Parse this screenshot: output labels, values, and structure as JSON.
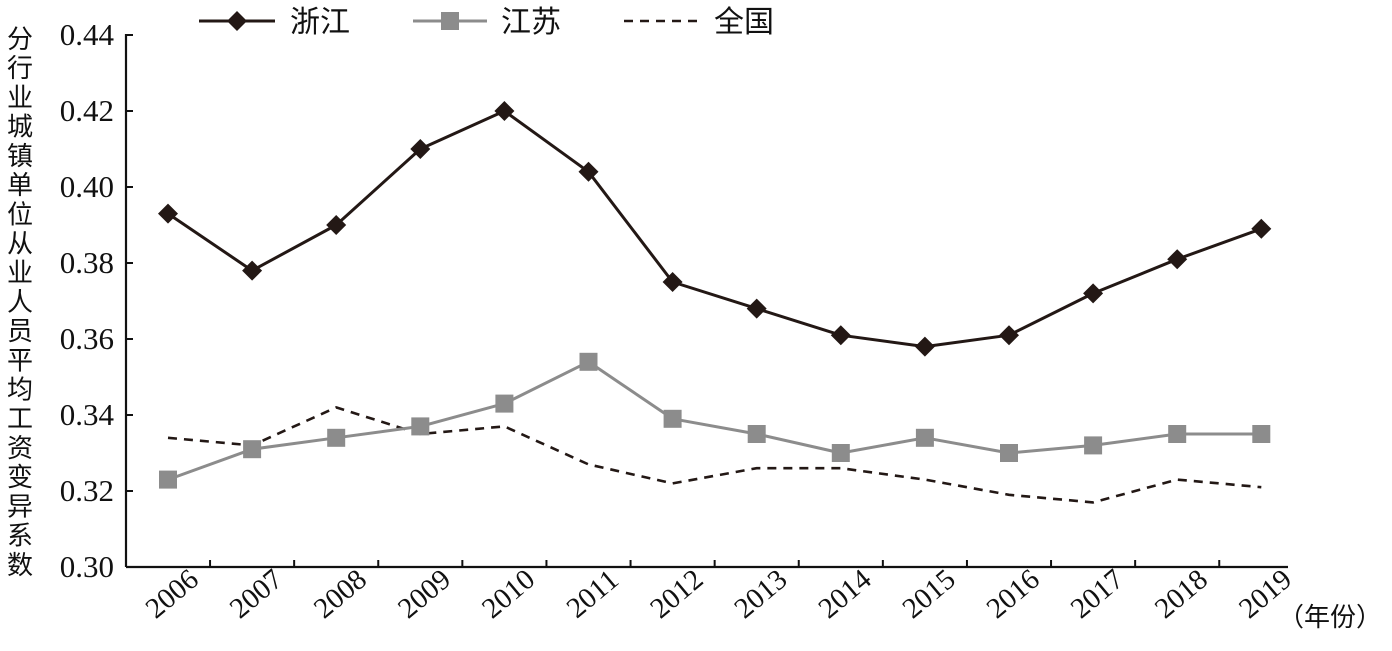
{
  "chart_data": {
    "type": "line",
    "xlabel": "（年份）",
    "ylabel": "分行业城镇单位从业人员平均工资变异系数",
    "x": [
      "2006",
      "2007",
      "2008",
      "2009",
      "2010",
      "2011",
      "2012",
      "2013",
      "2014",
      "2015",
      "2016",
      "2017",
      "2018",
      "2019"
    ],
    "ylim": [
      0.3,
      0.44
    ],
    "yticks": [
      "0.30",
      "0.32",
      "0.34",
      "0.36",
      "0.38",
      "0.40",
      "0.42",
      "0.44"
    ],
    "grid": false,
    "legend_position": "top",
    "series": [
      {
        "name": "浙江",
        "color": "#231815",
        "marker": "diamond",
        "line_style": "solid",
        "values": [
          0.393,
          0.378,
          0.39,
          0.41,
          0.42,
          0.404,
          0.375,
          0.368,
          0.361,
          0.358,
          0.361,
          0.372,
          0.381,
          0.389
        ]
      },
      {
        "name": "江苏",
        "color": "#8c8c8c",
        "marker": "square",
        "line_style": "solid",
        "values": [
          0.323,
          0.331,
          0.334,
          0.337,
          0.343,
          0.354,
          0.339,
          0.335,
          0.33,
          0.334,
          0.33,
          0.332,
          0.335,
          0.335
        ]
      },
      {
        "name": "全国",
        "color": "#231815",
        "marker": "none",
        "line_style": "dashed",
        "values": [
          0.334,
          0.332,
          0.342,
          0.335,
          0.337,
          0.327,
          0.322,
          0.326,
          0.326,
          0.323,
          0.319,
          0.317,
          0.323,
          0.321
        ]
      }
    ]
  }
}
